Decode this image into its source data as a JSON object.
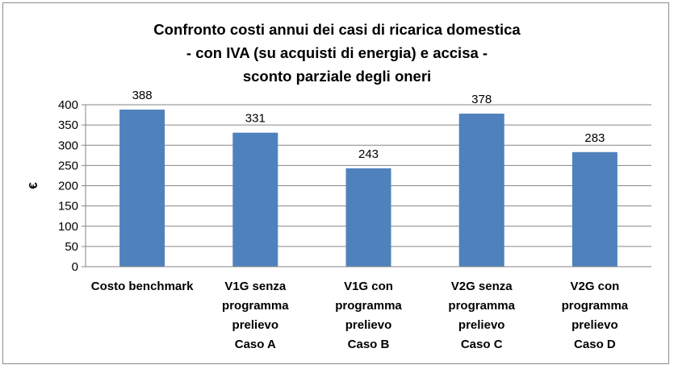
{
  "chart_data": {
    "type": "bar",
    "title_lines": [
      "Confronto costi annui dei casi di ricarica domestica",
      "- con IVA (su acquisti di energia) e accisa -",
      "sconto parziale degli oneri"
    ],
    "ylabel": "€",
    "xlabel": "",
    "ylim": [
      0,
      400
    ],
    "yticks": [
      "0",
      "50",
      "100",
      "150",
      "200",
      "250",
      "300",
      "350",
      "400"
    ],
    "categories": [
      [
        "Costo benchmark"
      ],
      [
        "V1G senza",
        "programma",
        "prelievo",
        "Caso A"
      ],
      [
        "V1G con",
        "programma",
        "prelievo",
        "Caso B"
      ],
      [
        "V2G senza",
        "programma",
        "prelievo",
        "Caso C"
      ],
      [
        "V2G con",
        "programma",
        "prelievo",
        "Caso D"
      ]
    ],
    "values": [
      388,
      331,
      243,
      378,
      283
    ],
    "data_labels": [
      "388",
      "331",
      "243",
      "378",
      "283"
    ],
    "bar_color": "#4f81bd",
    "grid": true,
    "legend": "none"
  }
}
